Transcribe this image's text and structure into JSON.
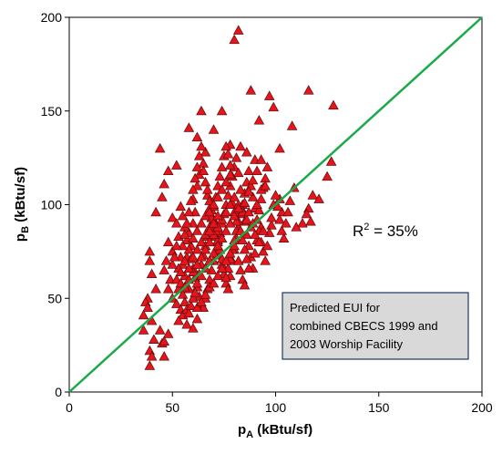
{
  "chart_data": {
    "type": "scatter",
    "title": "",
    "xlabel": {
      "main": "p",
      "sub": "A",
      "unit": " (kBtu/sf)"
    },
    "ylabel": {
      "main": "p",
      "sub": "B",
      "unit": " (kBtu/sf)"
    },
    "xlim": [
      0,
      200
    ],
    "ylim": [
      0,
      200
    ],
    "x_ticks": [
      0,
      50,
      100,
      150,
      200
    ],
    "y_ticks": [
      0,
      50,
      100,
      150,
      200
    ],
    "grid": false,
    "marker": {
      "shape": "triangle",
      "fill": "#e8141c",
      "stroke": "#5a0a0a"
    },
    "reference_line": {
      "from": [
        0,
        0
      ],
      "to": [
        200,
        200
      ],
      "color": "#1aaa4a"
    },
    "annotations": {
      "r2_main": "R",
      "r2_sup": "2",
      "r2_rest": " = 35%",
      "box_lines": [
        "Predicted EUI for",
        "combined CBECS 1999 and",
        "2003 Worship Facility"
      ],
      "box_fill": "#d9d9d9",
      "box_stroke": "#1f3864"
    },
    "points": [
      [
        80,
        188
      ],
      [
        82,
        193
      ],
      [
        88,
        161
      ],
      [
        97,
        158
      ],
      [
        99,
        152
      ],
      [
        116,
        161
      ],
      [
        128,
        153
      ],
      [
        108,
        142
      ],
      [
        64,
        150
      ],
      [
        74,
        150
      ],
      [
        92,
        145
      ],
      [
        58,
        141
      ],
      [
        62,
        136
      ],
      [
        70,
        140
      ],
      [
        78,
        132
      ],
      [
        83,
        131
      ],
      [
        86,
        128
      ],
      [
        90,
        124
      ],
      [
        102,
        130
      ],
      [
        127,
        123
      ],
      [
        125,
        115
      ],
      [
        109,
        109
      ],
      [
        118,
        105
      ],
      [
        121,
        103
      ],
      [
        116,
        98
      ],
      [
        102,
        103
      ],
      [
        115,
        95
      ],
      [
        113,
        90
      ],
      [
        117,
        91
      ],
      [
        110,
        88
      ],
      [
        103,
        96
      ],
      [
        98,
        89
      ],
      [
        93,
        88
      ],
      [
        44,
        130
      ],
      [
        52,
        121
      ],
      [
        48,
        118
      ],
      [
        46,
        111
      ],
      [
        45,
        104
      ],
      [
        42,
        96
      ],
      [
        39,
        75
      ],
      [
        39,
        70
      ],
      [
        40,
        63
      ],
      [
        42,
        55
      ],
      [
        38,
        50
      ],
      [
        37,
        48
      ],
      [
        38,
        45
      ],
      [
        36,
        41
      ],
      [
        40,
        38
      ],
      [
        36,
        33
      ],
      [
        41,
        28
      ],
      [
        45,
        26
      ],
      [
        39,
        22
      ],
      [
        40,
        19
      ],
      [
        46,
        19
      ],
      [
        39,
        14
      ],
      [
        44,
        33
      ],
      [
        48,
        31
      ],
      [
        46,
        27
      ],
      [
        50,
        93
      ],
      [
        52,
        90
      ],
      [
        53,
        83
      ],
      [
        48,
        80
      ],
      [
        50,
        75
      ],
      [
        47,
        70
      ],
      [
        46,
        65
      ],
      [
        49,
        60
      ],
      [
        48,
        55
      ],
      [
        50,
        50
      ],
      [
        52,
        47
      ],
      [
        54,
        44
      ],
      [
        55,
        41
      ],
      [
        53,
        38
      ],
      [
        57,
        36
      ],
      [
        60,
        34
      ],
      [
        62,
        39
      ],
      [
        58,
        55
      ],
      [
        56,
        62
      ],
      [
        55,
        68
      ],
      [
        57,
        72
      ],
      [
        59,
        78
      ],
      [
        58,
        85
      ],
      [
        60,
        90
      ],
      [
        61,
        96
      ],
      [
        60,
        103
      ],
      [
        62,
        110
      ],
      [
        63,
        116
      ],
      [
        65,
        122
      ],
      [
        66,
        128
      ],
      [
        67,
        105
      ],
      [
        68,
        98
      ],
      [
        69,
        93
      ],
      [
        70,
        88
      ],
      [
        71,
        83
      ],
      [
        72,
        78
      ],
      [
        73,
        73
      ],
      [
        74,
        68
      ],
      [
        75,
        63
      ],
      [
        76,
        58
      ],
      [
        77,
        55
      ],
      [
        78,
        62
      ],
      [
        79,
        70
      ],
      [
        80,
        76
      ],
      [
        81,
        82
      ],
      [
        82,
        88
      ],
      [
        83,
        95
      ],
      [
        84,
        100
      ],
      [
        85,
        106
      ],
      [
        86,
        112
      ],
      [
        87,
        118
      ],
      [
        88,
        110
      ],
      [
        89,
        104
      ],
      [
        90,
        98
      ],
      [
        91,
        92
      ],
      [
        92,
        86
      ],
      [
        93,
        80
      ],
      [
        94,
        75
      ],
      [
        95,
        70
      ],
      [
        96,
        78
      ],
      [
        97,
        85
      ],
      [
        98,
        93
      ],
      [
        99,
        100
      ],
      [
        100,
        105
      ],
      [
        101,
        99
      ],
      [
        102,
        92
      ],
      [
        103,
        86
      ],
      [
        104,
        82
      ],
      [
        105,
        90
      ],
      [
        106,
        96
      ],
      [
        107,
        102
      ],
      [
        54,
        99
      ],
      [
        55,
        94
      ],
      [
        56,
        88
      ],
      [
        57,
        81
      ],
      [
        58,
        76
      ],
      [
        59,
        71
      ],
      [
        60,
        66
      ],
      [
        61,
        61
      ],
      [
        62,
        56
      ],
      [
        63,
        51
      ],
      [
        64,
        47
      ],
      [
        65,
        45
      ],
      [
        66,
        50
      ],
      [
        67,
        55
      ],
      [
        68,
        60
      ],
      [
        69,
        65
      ],
      [
        70,
        70
      ],
      [
        71,
        75
      ],
      [
        72,
        80
      ],
      [
        73,
        85
      ],
      [
        74,
        90
      ],
      [
        75,
        95
      ],
      [
        76,
        100
      ],
      [
        77,
        105
      ],
      [
        78,
        110
      ],
      [
        79,
        115
      ],
      [
        80,
        120
      ],
      [
        81,
        125
      ],
      [
        82,
        117
      ],
      [
        83,
        108
      ],
      [
        84,
        97
      ],
      [
        85,
        91
      ],
      [
        86,
        84
      ],
      [
        87,
        78
      ],
      [
        88,
        72
      ],
      [
        89,
        66
      ],
      [
        90,
        74
      ],
      [
        91,
        81
      ],
      [
        92,
        97
      ],
      [
        93,
        103
      ],
      [
        94,
        109
      ],
      [
        95,
        114
      ],
      [
        96,
        120
      ],
      [
        52,
        60
      ],
      [
        53,
        66
      ],
      [
        54,
        72
      ],
      [
        55,
        78
      ],
      [
        56,
        84
      ],
      [
        57,
        90
      ],
      [
        58,
        96
      ],
      [
        59,
        102
      ],
      [
        60,
        108
      ],
      [
        61,
        114
      ],
      [
        62,
        120
      ],
      [
        63,
        126
      ],
      [
        64,
        131
      ],
      [
        65,
        118
      ],
      [
        66,
        112
      ],
      [
        67,
        108
      ],
      [
        68,
        102
      ],
      [
        69,
        97
      ],
      [
        70,
        92
      ],
      [
        71,
        86
      ],
      [
        72,
        81
      ],
      [
        73,
        76
      ],
      [
        74,
        71
      ],
      [
        75,
        66
      ],
      [
        76,
        61
      ],
      [
        77,
        66
      ],
      [
        78,
        71
      ],
      [
        79,
        76
      ],
      [
        80,
        81
      ],
      [
        81,
        86
      ],
      [
        82,
        91
      ],
      [
        83,
        86
      ],
      [
        84,
        81
      ],
      [
        85,
        76
      ],
      [
        86,
        71
      ],
      [
        87,
        66
      ],
      [
        50,
        68
      ],
      [
        51,
        72
      ],
      [
        52,
        78
      ],
      [
        53,
        55
      ],
      [
        54,
        58
      ],
      [
        55,
        52
      ],
      [
        56,
        48
      ],
      [
        57,
        44
      ],
      [
        58,
        42
      ],
      [
        59,
        46
      ],
      [
        60,
        50
      ],
      [
        61,
        53
      ],
      [
        62,
        58
      ],
      [
        63,
        63
      ],
      [
        64,
        68
      ],
      [
        65,
        73
      ],
      [
        66,
        78
      ],
      [
        67,
        83
      ],
      [
        68,
        88
      ],
      [
        69,
        93
      ],
      [
        70,
        99
      ],
      [
        71,
        104
      ],
      [
        72,
        110
      ],
      [
        73,
        115
      ],
      [
        74,
        120
      ],
      [
        75,
        126
      ],
      [
        76,
        131
      ],
      [
        77,
        127
      ],
      [
        78,
        121
      ],
      [
        79,
        101
      ],
      [
        80,
        96
      ],
      [
        81,
        91
      ],
      [
        82,
        70
      ],
      [
        83,
        65
      ],
      [
        84,
        60
      ],
      [
        85,
        57
      ],
      [
        56,
        56
      ],
      [
        58,
        60
      ],
      [
        60,
        64
      ],
      [
        62,
        68
      ],
      [
        64,
        72
      ],
      [
        66,
        76
      ],
      [
        68,
        80
      ],
      [
        70,
        84
      ],
      [
        72,
        88
      ],
      [
        74,
        92
      ],
      [
        76,
        96
      ],
      [
        78,
        100
      ],
      [
        80,
        104
      ],
      [
        82,
        100
      ],
      [
        84,
        96
      ],
      [
        86,
        92
      ],
      [
        88,
        88
      ],
      [
        90,
        84
      ],
      [
        92,
        80
      ],
      [
        94,
        86
      ],
      [
        64,
        62
      ],
      [
        66,
        66
      ],
      [
        68,
        70
      ],
      [
        70,
        74
      ],
      [
        72,
        78
      ],
      [
        74,
        82
      ],
      [
        76,
        86
      ],
      [
        78,
        90
      ],
      [
        80,
        94
      ],
      [
        82,
        98
      ],
      [
        62,
        45
      ],
      [
        64,
        48
      ],
      [
        66,
        52
      ],
      [
        68,
        56
      ],
      [
        70,
        58
      ],
      [
        72,
        62
      ],
      [
        74,
        66
      ],
      [
        76,
        70
      ],
      [
        78,
        74
      ],
      [
        80,
        78
      ],
      [
        60,
        82
      ],
      [
        62,
        86
      ],
      [
        64,
        90
      ],
      [
        66,
        94
      ],
      [
        68,
        96
      ],
      [
        70,
        100
      ],
      [
        72,
        104
      ],
      [
        74,
        108
      ],
      [
        76,
        112
      ],
      [
        78,
        116
      ],
      [
        54,
        64
      ],
      [
        56,
        70
      ],
      [
        58,
        66
      ],
      [
        60,
        72
      ],
      [
        62,
        76
      ],
      [
        64,
        80
      ],
      [
        66,
        84
      ],
      [
        68,
        86
      ],
      [
        70,
        90
      ],
      [
        72,
        94
      ],
      [
        85,
        101
      ],
      [
        87,
        107
      ],
      [
        89,
        113
      ],
      [
        91,
        118
      ],
      [
        93,
        124
      ],
      [
        87,
        96
      ],
      [
        89,
        90
      ],
      [
        91,
        100
      ],
      [
        93,
        108
      ],
      [
        95,
        110
      ]
    ]
  }
}
